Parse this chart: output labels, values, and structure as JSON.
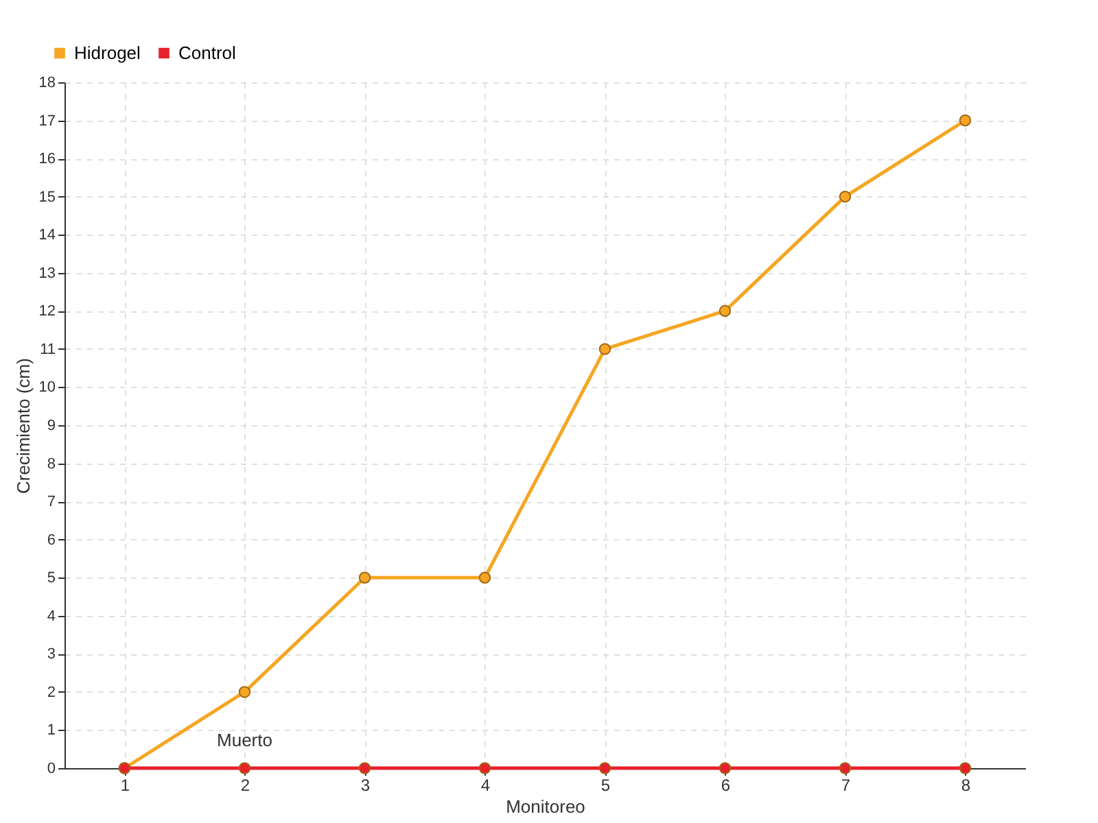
{
  "chart_data": {
    "type": "line",
    "xlabel": "Monitoreo",
    "ylabel": "Crecimiento (cm)",
    "categories": [
      "1",
      "2",
      "3",
      "4",
      "5",
      "6",
      "7",
      "8"
    ],
    "series": [
      {
        "name": "Hidrogel",
        "color": "#f5a623",
        "values": [
          0,
          2,
          5,
          5,
          11,
          12,
          15,
          17
        ]
      },
      {
        "name": "Control",
        "color": "#e8202a",
        "values": [
          0,
          0,
          0,
          0,
          0,
          0,
          0,
          0
        ]
      }
    ],
    "ylim": [
      0,
      18
    ],
    "yticks": [
      0,
      1,
      2,
      3,
      4,
      5,
      6,
      7,
      8,
      9,
      10,
      11,
      12,
      13,
      14,
      15,
      16,
      17,
      18
    ],
    "grid": true,
    "legend": "top left",
    "marker": "circle",
    "line_style": "solid",
    "annotations": [
      {
        "text": "Muerto",
        "x": "2",
        "y": 0
      }
    ]
  }
}
